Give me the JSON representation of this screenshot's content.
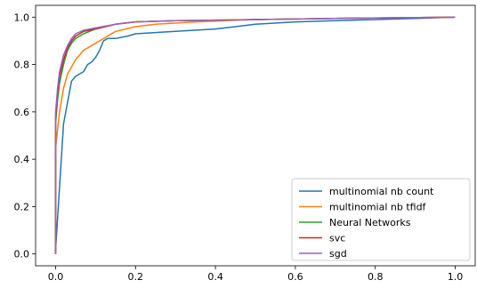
{
  "chart_data": {
    "type": "line",
    "title": "",
    "xlabel": "",
    "ylabel": "",
    "xlim": [
      -0.05,
      1.05
    ],
    "ylim": [
      -0.05,
      1.05
    ],
    "xticks": [
      "0.0",
      "0.2",
      "0.4",
      "0.6",
      "0.8",
      "1.0"
    ],
    "yticks": [
      "0.0",
      "0.2",
      "0.4",
      "0.6",
      "0.8",
      "1.0"
    ],
    "grid": false,
    "legend_position": "lower-right",
    "series": [
      {
        "name": "multinomial nb count",
        "color": "#1f77b4",
        "points": [
          [
            0,
            0
          ],
          [
            0,
            0.02
          ],
          [
            0.02,
            0.55
          ],
          [
            0.04,
            0.73
          ],
          [
            0.05,
            0.75
          ],
          [
            0.07,
            0.77
          ],
          [
            0.08,
            0.8
          ],
          [
            0.09,
            0.81
          ],
          [
            0.1,
            0.83
          ],
          [
            0.11,
            0.86
          ],
          [
            0.12,
            0.9
          ],
          [
            0.13,
            0.91
          ],
          [
            0.15,
            0.91
          ],
          [
            0.18,
            0.92
          ],
          [
            0.2,
            0.93
          ],
          [
            0.3,
            0.94
          ],
          [
            0.4,
            0.95
          ],
          [
            0.45,
            0.96
          ],
          [
            0.5,
            0.97
          ],
          [
            0.6,
            0.98
          ],
          [
            0.7,
            0.985
          ],
          [
            0.8,
            0.99
          ],
          [
            0.9,
            0.995
          ],
          [
            1.0,
            1.0
          ]
        ]
      },
      {
        "name": "multinomial nb tfidf",
        "color": "#ff7f0e",
        "points": [
          [
            0,
            0
          ],
          [
            0,
            0.45
          ],
          [
            0.01,
            0.6
          ],
          [
            0.02,
            0.7
          ],
          [
            0.03,
            0.76
          ],
          [
            0.05,
            0.82
          ],
          [
            0.07,
            0.86
          ],
          [
            0.09,
            0.88
          ],
          [
            0.11,
            0.9
          ],
          [
            0.13,
            0.92
          ],
          [
            0.15,
            0.94
          ],
          [
            0.2,
            0.96
          ],
          [
            0.25,
            0.97
          ],
          [
            0.35,
            0.98
          ],
          [
            0.5,
            0.99
          ],
          [
            0.7,
            0.995
          ],
          [
            1.0,
            1.0
          ]
        ]
      },
      {
        "name": "Neural Networks",
        "color": "#2ca02c",
        "points": [
          [
            0,
            0
          ],
          [
            0,
            0.55
          ],
          [
            0.005,
            0.65
          ],
          [
            0.01,
            0.72
          ],
          [
            0.02,
            0.8
          ],
          [
            0.03,
            0.86
          ],
          [
            0.04,
            0.89
          ],
          [
            0.05,
            0.91
          ],
          [
            0.07,
            0.93
          ],
          [
            0.1,
            0.95
          ],
          [
            0.15,
            0.97
          ],
          [
            0.2,
            0.98
          ],
          [
            0.3,
            0.985
          ],
          [
            0.5,
            0.99
          ],
          [
            0.7,
            0.995
          ],
          [
            1.0,
            1.0
          ]
        ]
      },
      {
        "name": "svc",
        "color": "#d62728",
        "points": [
          [
            0,
            0
          ],
          [
            0,
            0.58
          ],
          [
            0.005,
            0.68
          ],
          [
            0.01,
            0.75
          ],
          [
            0.02,
            0.82
          ],
          [
            0.03,
            0.87
          ],
          [
            0.04,
            0.9
          ],
          [
            0.05,
            0.92
          ],
          [
            0.07,
            0.94
          ],
          [
            0.1,
            0.95
          ],
          [
            0.15,
            0.97
          ],
          [
            0.2,
            0.98
          ],
          [
            0.3,
            0.985
          ],
          [
            0.5,
            0.99
          ],
          [
            0.7,
            0.995
          ],
          [
            1.0,
            1.0
          ]
        ]
      },
      {
        "name": "sgd",
        "color": "#9467bd",
        "points": [
          [
            0,
            0
          ],
          [
            0,
            0.6
          ],
          [
            0.005,
            0.7
          ],
          [
            0.01,
            0.77
          ],
          [
            0.02,
            0.84
          ],
          [
            0.03,
            0.88
          ],
          [
            0.04,
            0.91
          ],
          [
            0.05,
            0.93
          ],
          [
            0.07,
            0.945
          ],
          [
            0.1,
            0.955
          ],
          [
            0.15,
            0.97
          ],
          [
            0.2,
            0.98
          ],
          [
            0.3,
            0.985
          ],
          [
            0.5,
            0.99
          ],
          [
            0.7,
            0.995
          ],
          [
            1.0,
            1.0
          ]
        ]
      }
    ]
  }
}
